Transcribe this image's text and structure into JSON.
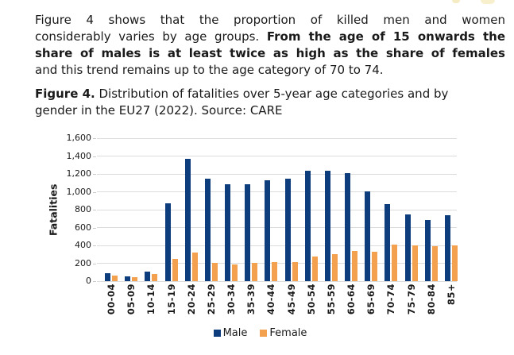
{
  "document": {
    "paragraph_lines": [
      {
        "justify": true,
        "segments": [
          {
            "text": "Figure 4 shows that the proportion of killed men and women",
            "bold": false
          }
        ]
      },
      {
        "justify": true,
        "segments": [
          {
            "text": "considerably varies by age groups. ",
            "bold": false
          },
          {
            "text": "From the age of 15 onwards the",
            "bold": true
          }
        ]
      },
      {
        "justify": true,
        "segments": [
          {
            "text": "share of males is at least twice as high as the share of females",
            "bold": true
          }
        ]
      },
      {
        "justify": false,
        "segments": [
          {
            "text": "and this trend remains up to the age category of 70 to 74.",
            "bold": false
          }
        ]
      }
    ],
    "caption_lines": [
      {
        "segments": [
          {
            "text": "Figure 4.",
            "bold": true
          },
          {
            "text": " Distribution of fatalities over 5-year age categories and by",
            "bold": false
          }
        ]
      },
      {
        "segments": [
          {
            "text": "gender in the EU27 (2022). Source: CARE",
            "bold": false
          }
        ]
      }
    ]
  },
  "chart_data": {
    "type": "bar",
    "title": "Figure 4. Distribution of fatalities over 5-year age categories and by gender in the EU27 (2022). Source: CARE",
    "xlabel": "",
    "ylabel": "Fatalities",
    "ylim": [
      0,
      1600
    ],
    "grid": true,
    "legend_position": "bottom",
    "yticks": [
      {
        "value": 0,
        "label": "0"
      },
      {
        "value": 200,
        "label": "200"
      },
      {
        "value": 400,
        "label": "400"
      },
      {
        "value": 600,
        "label": "600"
      },
      {
        "value": 800,
        "label": "800"
      },
      {
        "value": 1000,
        "label": "1,000"
      },
      {
        "value": 1200,
        "label": "1,200"
      },
      {
        "value": 1400,
        "label": "1,400"
      },
      {
        "value": 1600,
        "label": "1,600"
      }
    ],
    "categories": [
      "00-04",
      "05-09",
      "10-14",
      "15-19",
      "20-24",
      "25-29",
      "30-34",
      "35-39",
      "40-44",
      "45-49",
      "50-54",
      "55-59",
      "60-64",
      "65-69",
      "70-74",
      "75-79",
      "80-84",
      "85+"
    ],
    "series": [
      {
        "name": "Male",
        "color": "#0e3d7d",
        "values": [
          90,
          55,
          110,
          870,
          1365,
          1150,
          1080,
          1085,
          1125,
          1145,
          1235,
          1235,
          1210,
          1000,
          865,
          745,
          685,
          735
        ]
      },
      {
        "name": "Female",
        "color": "#f3a14f",
        "values": [
          58,
          48,
          76,
          250,
          318,
          205,
          185,
          205,
          210,
          215,
          280,
          305,
          335,
          325,
          405,
          400,
          395,
          400
        ]
      }
    ],
    "colors": {
      "gridline": "#dcdcdc",
      "tick": "#c9c9c9",
      "text": "#1a1a1a"
    }
  }
}
